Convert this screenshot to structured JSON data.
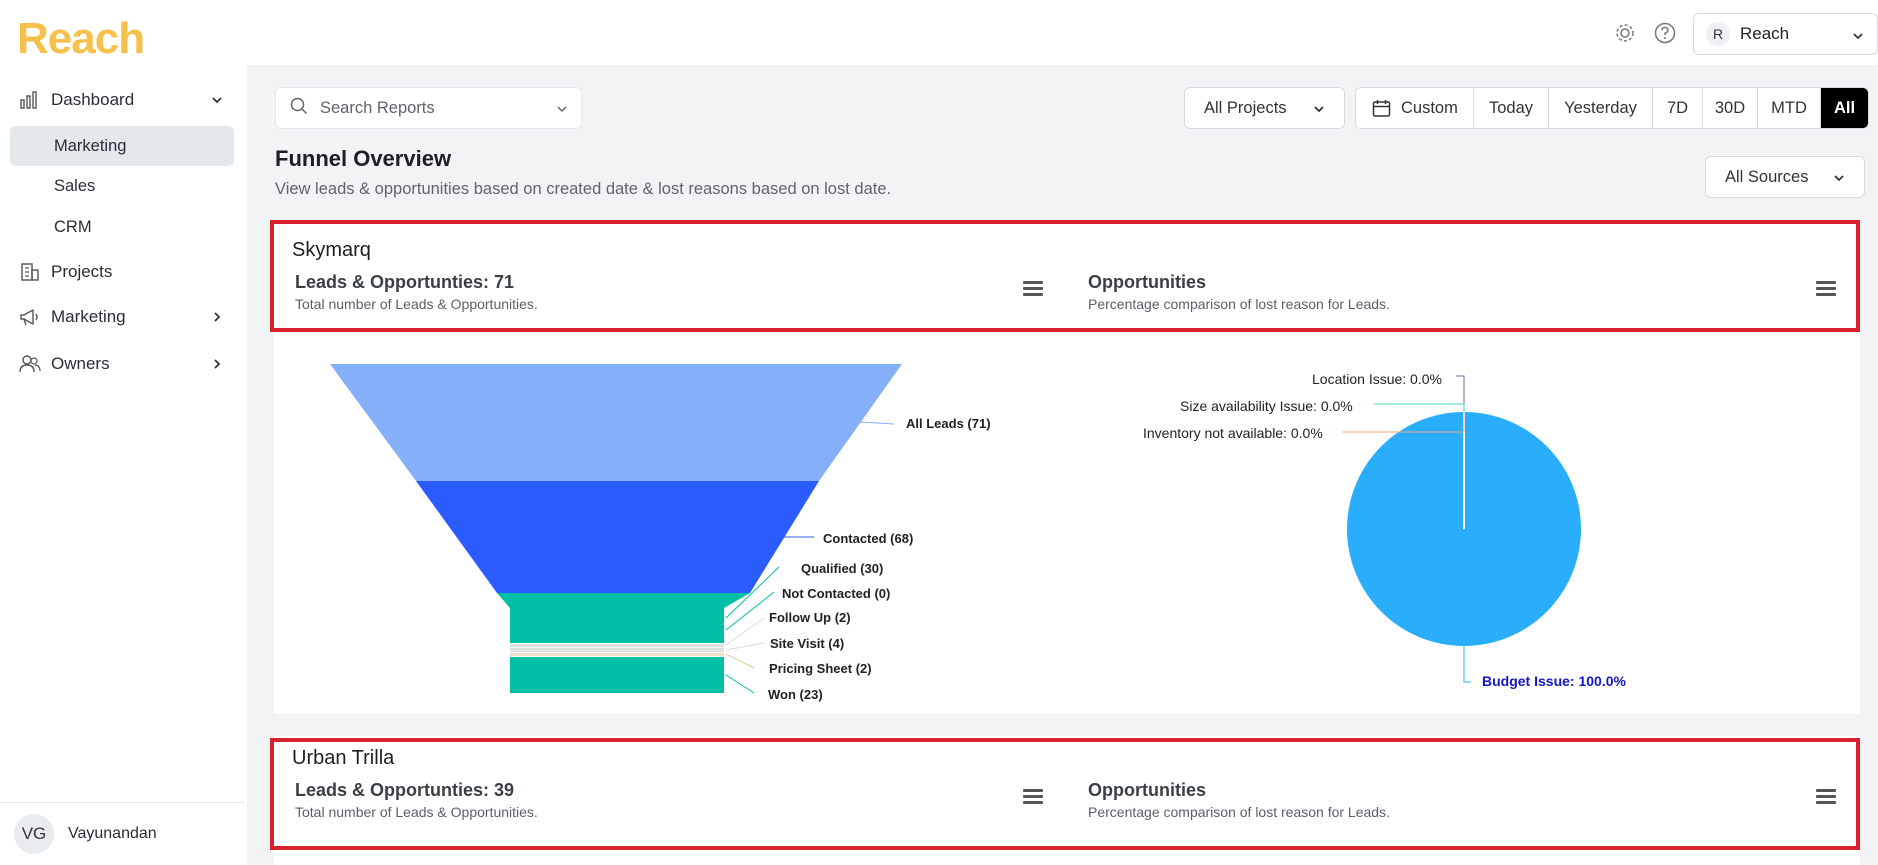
{
  "brand": {
    "logo": "Reach"
  },
  "sidebar": {
    "dashboard": "Dashboard",
    "sub_items": [
      "Marketing",
      "Sales",
      "CRM"
    ],
    "projects": "Projects",
    "marketing": "Marketing",
    "owners": "Owners",
    "user_initials": "VG",
    "user_name": "Vayunandan"
  },
  "topbar": {
    "account_initial": "R",
    "account_name": "Reach"
  },
  "toolbar": {
    "search_placeholder": "Search Reports",
    "projects_filter": "All Projects",
    "date_ranges": [
      "Custom",
      "Today",
      "Yesterday",
      "7D",
      "30D",
      "MTD",
      "All"
    ],
    "active_range": "All",
    "sources_filter": "All Sources"
  },
  "page": {
    "title": "Funnel Overview",
    "subtitle": "View leads & opportunities based on created date & lost reasons based on lost date."
  },
  "cards": [
    {
      "name": "Skymarq",
      "leads_heading": "Leads & Opportunties: 71",
      "leads_sub": "Total number of Leads & Opportunities.",
      "opp_heading": "Opportunities",
      "opp_sub": "Percentage comparison of lost reason for Leads."
    },
    {
      "name": "Urban Trilla",
      "leads_heading": "Leads & Opportunties: 39",
      "leads_sub": "Total number of Leads & Opportunities.",
      "opp_heading": "Opportunities",
      "opp_sub": "Percentage comparison of lost reason for Leads."
    }
  ],
  "funnel": {
    "stages": [
      {
        "label": "All Leads (71)",
        "value": 71,
        "color": "#85aff9"
      },
      {
        "label": "Contacted (68)",
        "value": 68,
        "color": "#2b5cff"
      },
      {
        "label": "Qualified (30)",
        "value": 30,
        "color": "#00bfa5"
      },
      {
        "label": "Not Contacted (0)",
        "value": 0,
        "color": "#00bfa5"
      },
      {
        "label": "Follow Up (2)",
        "value": 2,
        "color": "#d9d9d9"
      },
      {
        "label": "Site Visit (4)",
        "value": 4,
        "color": "#d9d9d9"
      },
      {
        "label": "Pricing Sheet (2)",
        "value": 2,
        "color": "#e8c9a0"
      },
      {
        "label": "Won (23)",
        "value": 23,
        "color": "#00bfa5"
      }
    ]
  },
  "pie": {
    "slices": [
      {
        "label": "Location Issue: 0.0%",
        "value": 0.0
      },
      {
        "label": "Size availability Issue: 0.0%",
        "value": 0.0
      },
      {
        "label": "Inventory not available: 0.0%",
        "value": 0.0
      },
      {
        "label": "Budget Issue: 100.0%",
        "value": 100.0
      }
    ],
    "color": "#2aaefc",
    "highlight_color": "#1515c9"
  }
}
